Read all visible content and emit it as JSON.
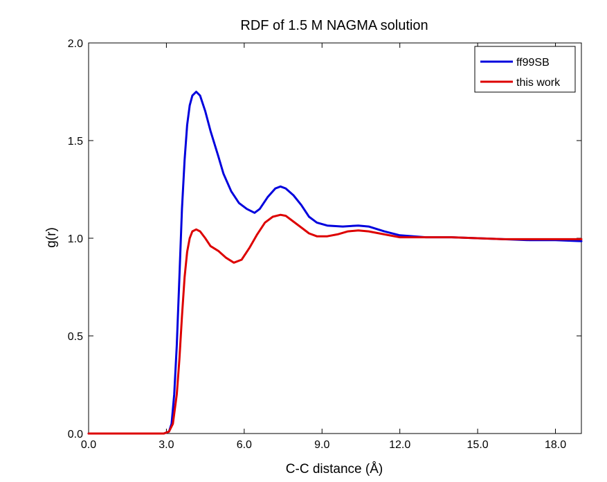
{
  "chart_data": {
    "type": "line",
    "title": "RDF of 1.5 M NAGMA solution",
    "xlabel": "C-C distance (Å)",
    "ylabel": "g(r)",
    "xlim": [
      0,
      19
    ],
    "ylim": [
      0,
      2.0
    ],
    "x_ticks": [
      0,
      3,
      6,
      9,
      12,
      15,
      18
    ],
    "x_tick_labels": [
      "0.0",
      "3.0",
      "6.0",
      "9.0",
      "12.0",
      "15.0",
      "18.0"
    ],
    "y_ticks": [
      0,
      0.5,
      1.0,
      1.5,
      2.0
    ],
    "y_tick_labels": [
      "0.0",
      "0.5",
      "1.0",
      "1.5",
      "2.0"
    ],
    "grid": false,
    "legend_position": "top-right",
    "series": [
      {
        "name": "ff99SB",
        "color": "#0000dd",
        "points": [
          [
            0.0,
            0.0
          ],
          [
            2.9,
            0.0
          ],
          [
            3.1,
            0.01
          ],
          [
            3.2,
            0.05
          ],
          [
            3.3,
            0.2
          ],
          [
            3.4,
            0.45
          ],
          [
            3.5,
            0.8
          ],
          [
            3.6,
            1.15
          ],
          [
            3.7,
            1.4
          ],
          [
            3.8,
            1.58
          ],
          [
            3.9,
            1.68
          ],
          [
            4.0,
            1.73
          ],
          [
            4.15,
            1.75
          ],
          [
            4.3,
            1.73
          ],
          [
            4.5,
            1.65
          ],
          [
            4.7,
            1.55
          ],
          [
            5.0,
            1.42
          ],
          [
            5.2,
            1.33
          ],
          [
            5.5,
            1.24
          ],
          [
            5.8,
            1.18
          ],
          [
            6.1,
            1.15
          ],
          [
            6.4,
            1.13
          ],
          [
            6.6,
            1.15
          ],
          [
            6.9,
            1.21
          ],
          [
            7.2,
            1.255
          ],
          [
            7.4,
            1.265
          ],
          [
            7.6,
            1.255
          ],
          [
            7.9,
            1.22
          ],
          [
            8.2,
            1.17
          ],
          [
            8.5,
            1.11
          ],
          [
            8.8,
            1.08
          ],
          [
            9.2,
            1.065
          ],
          [
            9.8,
            1.06
          ],
          [
            10.4,
            1.065
          ],
          [
            10.8,
            1.06
          ],
          [
            11.4,
            1.035
          ],
          [
            12.0,
            1.015
          ],
          [
            13.0,
            1.005
          ],
          [
            14.0,
            1.005
          ],
          [
            15.0,
            1.0
          ],
          [
            16.0,
            0.995
          ],
          [
            17.0,
            0.99
          ],
          [
            18.0,
            0.99
          ],
          [
            19.0,
            0.985
          ]
        ]
      },
      {
        "name": "this work",
        "color": "#dd0000",
        "points": [
          [
            0.0,
            0.0
          ],
          [
            2.9,
            0.0
          ],
          [
            3.1,
            0.01
          ],
          [
            3.25,
            0.05
          ],
          [
            3.4,
            0.2
          ],
          [
            3.5,
            0.38
          ],
          [
            3.6,
            0.6
          ],
          [
            3.7,
            0.8
          ],
          [
            3.8,
            0.93
          ],
          [
            3.9,
            1.0
          ],
          [
            4.0,
            1.035
          ],
          [
            4.15,
            1.045
          ],
          [
            4.3,
            1.035
          ],
          [
            4.5,
            1.0
          ],
          [
            4.7,
            0.96
          ],
          [
            5.0,
            0.935
          ],
          [
            5.3,
            0.9
          ],
          [
            5.6,
            0.875
          ],
          [
            5.9,
            0.89
          ],
          [
            6.2,
            0.95
          ],
          [
            6.5,
            1.02
          ],
          [
            6.8,
            1.08
          ],
          [
            7.1,
            1.11
          ],
          [
            7.4,
            1.12
          ],
          [
            7.6,
            1.115
          ],
          [
            7.9,
            1.085
          ],
          [
            8.2,
            1.055
          ],
          [
            8.5,
            1.025
          ],
          [
            8.8,
            1.01
          ],
          [
            9.2,
            1.01
          ],
          [
            9.6,
            1.02
          ],
          [
            10.0,
            1.035
          ],
          [
            10.4,
            1.04
          ],
          [
            10.8,
            1.035
          ],
          [
            11.4,
            1.02
          ],
          [
            12.0,
            1.005
          ],
          [
            13.0,
            1.005
          ],
          [
            14.0,
            1.005
          ],
          [
            15.0,
            1.0
          ],
          [
            16.0,
            0.995
          ],
          [
            17.0,
            0.995
          ],
          [
            18.0,
            0.995
          ],
          [
            19.0,
            0.995
          ]
        ]
      }
    ]
  }
}
